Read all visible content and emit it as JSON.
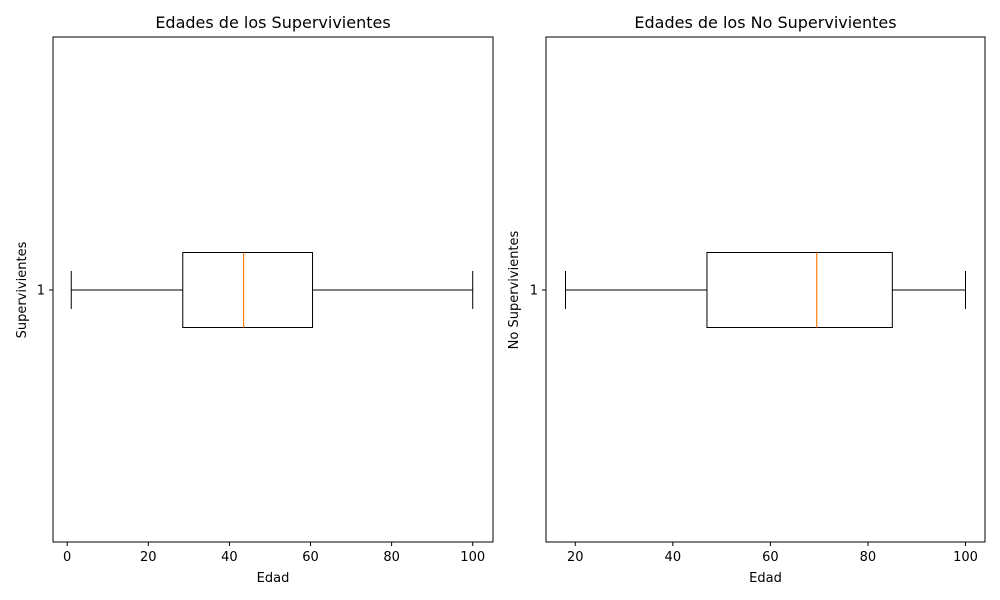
{
  "chart_data": [
    {
      "type": "boxplot",
      "orientation": "horizontal",
      "title": "Edades de los Supervivientes",
      "xlabel": "Edad",
      "ylabel": "Supervivientes",
      "xlim": [
        -3.5,
        105
      ],
      "xticks": [
        0,
        20,
        40,
        60,
        80,
        100
      ],
      "category_ticks": [
        "1"
      ],
      "boxes": [
        {
          "category": "1",
          "whisker_low": 1,
          "q1": 28.5,
          "median": 43.5,
          "q3": 60.5,
          "whisker_high": 100
        }
      ],
      "colors": {
        "box": "#000000",
        "median": "#ff7f0e"
      }
    },
    {
      "type": "boxplot",
      "orientation": "horizontal",
      "title": "Edades de los No Supervivientes",
      "xlabel": "Edad",
      "ylabel": "No Supervivientes",
      "xlim": [
        14,
        104
      ],
      "xticks": [
        20,
        40,
        60,
        80,
        100
      ],
      "category_ticks": [
        "1"
      ],
      "boxes": [
        {
          "category": "1",
          "whisker_low": 18,
          "q1": 47,
          "median": 69.5,
          "q3": 85,
          "whisker_high": 100
        }
      ],
      "colors": {
        "box": "#000000",
        "median": "#ff7f0e"
      }
    }
  ]
}
